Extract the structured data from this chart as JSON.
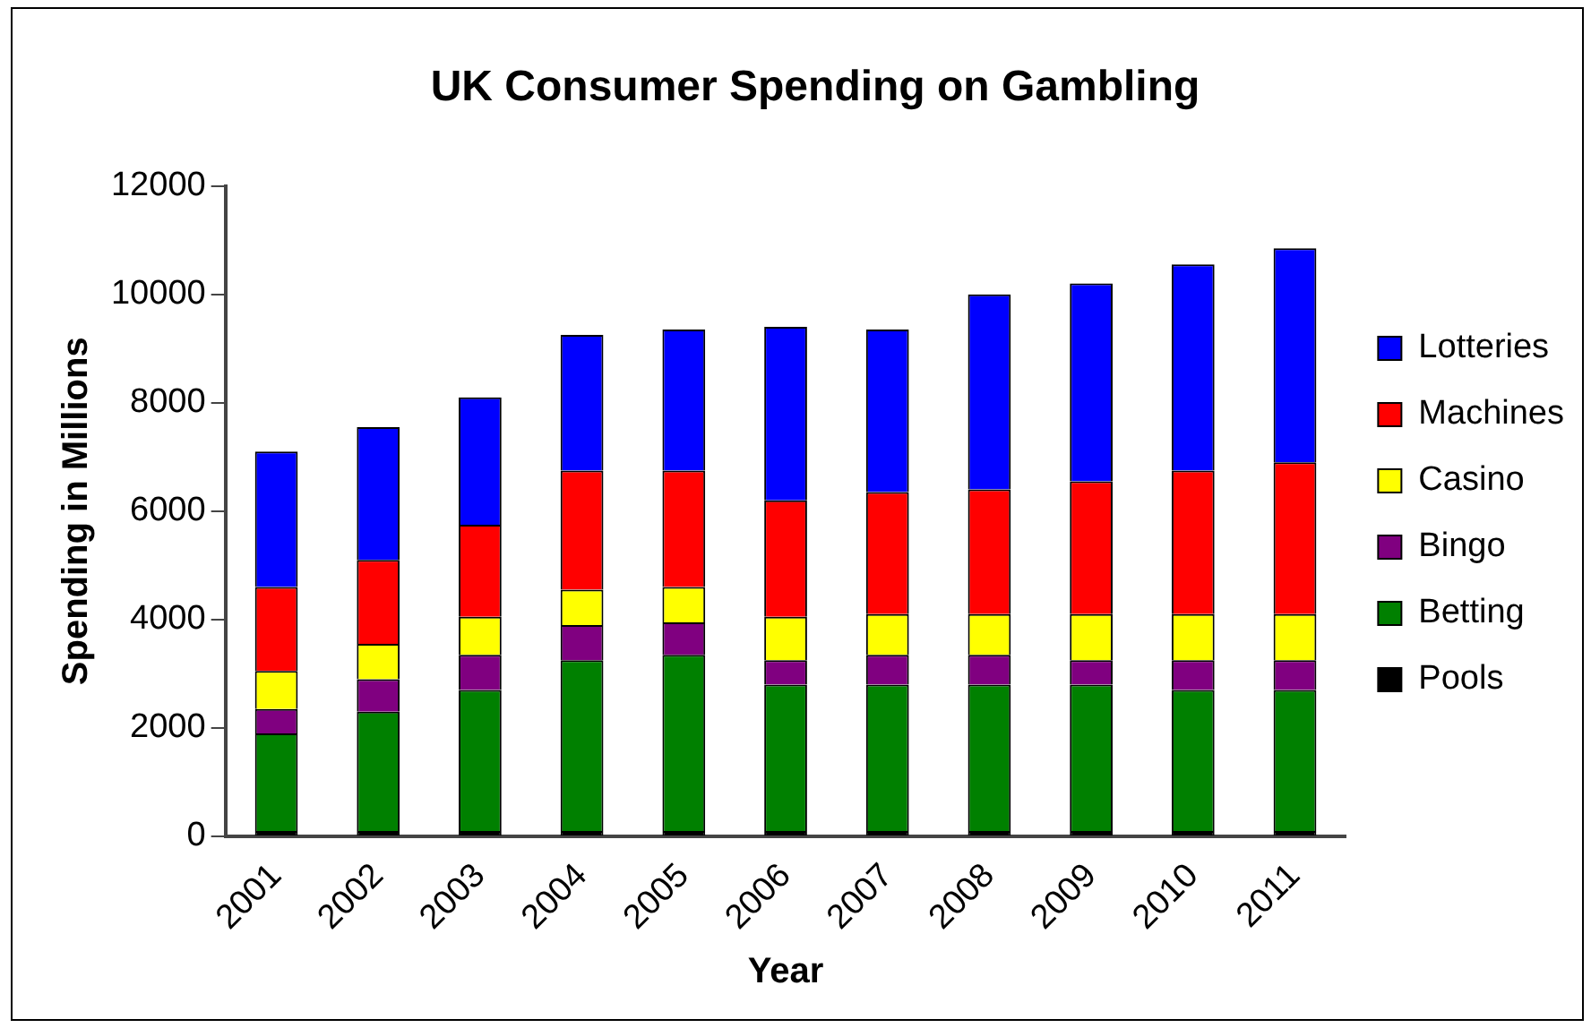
{
  "chart_data": {
    "type": "bar",
    "title": "UK Consumer Spending on Gambling",
    "xlabel": "Year",
    "ylabel": "Spending in Millions",
    "categories": [
      "2001",
      "2002",
      "2003",
      "2004",
      "2005",
      "2006",
      "2007",
      "2008",
      "2009",
      "2010",
      "2011"
    ],
    "stacked": true,
    "ylim": [
      0,
      12000
    ],
    "yticks": [
      0,
      2000,
      4000,
      6000,
      8000,
      10000,
      12000
    ],
    "grid": false,
    "legend": "right",
    "series": [
      {
        "name": "Pools",
        "color": "#000000",
        "values": [
          100,
          100,
          100,
          100,
          100,
          100,
          100,
          100,
          100,
          100,
          100
        ]
      },
      {
        "name": "Betting",
        "color": "#008000",
        "values": [
          1800,
          2200,
          2600,
          3150,
          3250,
          2700,
          2700,
          2700,
          2700,
          2600,
          2600
        ]
      },
      {
        "name": "Bingo",
        "color": "#800080",
        "values": [
          450,
          600,
          650,
          650,
          600,
          450,
          550,
          550,
          450,
          550,
          550
        ]
      },
      {
        "name": "Casino",
        "color": "#ffff00",
        "values": [
          700,
          650,
          700,
          650,
          650,
          800,
          750,
          750,
          850,
          850,
          850
        ]
      },
      {
        "name": "Machines",
        "color": "#ff0000",
        "values": [
          1550,
          1550,
          1700,
          2200,
          2150,
          2150,
          2250,
          2300,
          2450,
          2650,
          2800
        ]
      },
      {
        "name": "Lotteries",
        "color": "#0000ff",
        "values": [
          2500,
          2450,
          2350,
          2500,
          2600,
          3200,
          3000,
          3600,
          3650,
          3800,
          3950
        ]
      }
    ]
  }
}
